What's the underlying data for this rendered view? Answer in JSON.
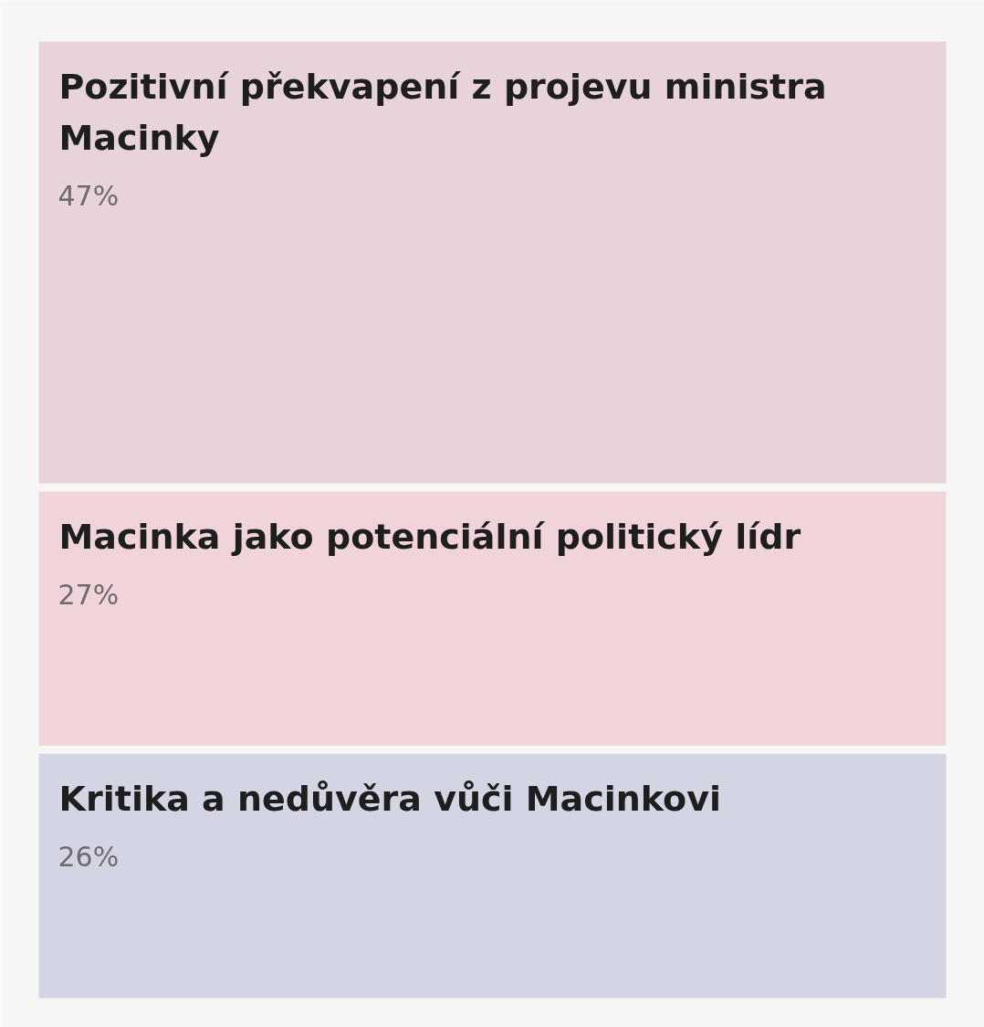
{
  "chart_data": {
    "type": "other",
    "categories": [
      "Pozitivní překvapení z projevu ministra Macinky",
      "Macinka jako potenciální politický lídr",
      "Kritika a nedůvěra vůči Macinkovi"
    ],
    "values": [
      47,
      27,
      26
    ],
    "value_labels": [
      "47%",
      "27%",
      "26%"
    ],
    "colors": [
      "#e8d3da",
      "#f1d4d9",
      "#d4d5e4"
    ]
  }
}
